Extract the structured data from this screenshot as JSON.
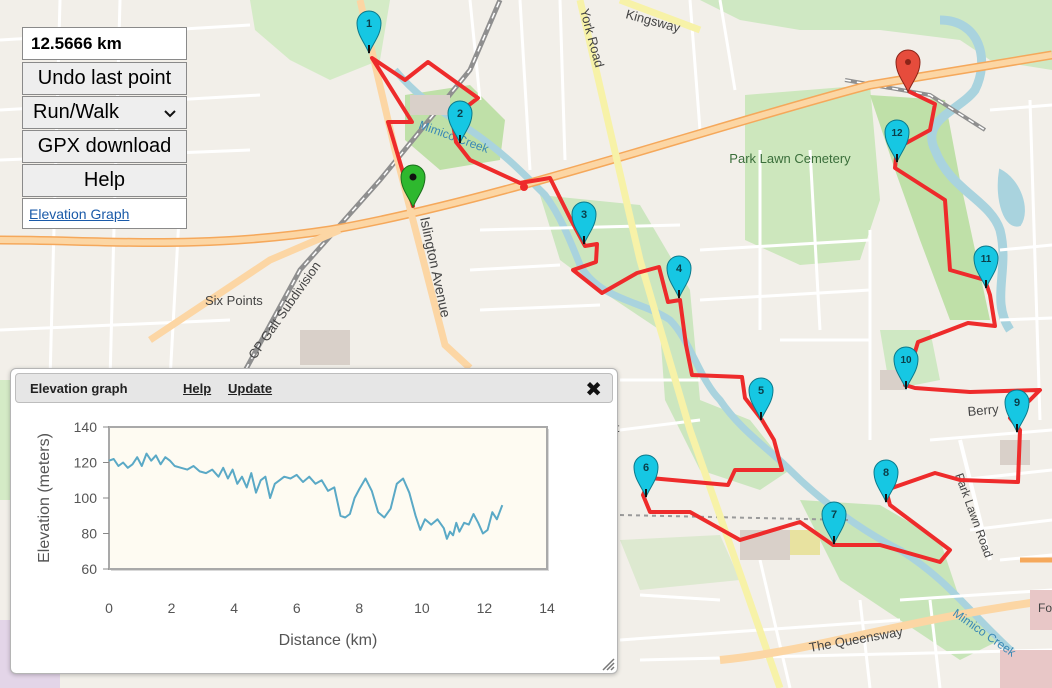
{
  "route": {
    "distance": "12.5666 km",
    "color": "#ee2b2b",
    "start_marker_color": "#2eb82e",
    "end_marker_color": "#e64c3c",
    "waypoint_color": "#16c7e3",
    "waypoints": [
      "1",
      "2",
      "3",
      "4",
      "5",
      "6",
      "7",
      "8",
      "9",
      "10",
      "11",
      "12"
    ]
  },
  "controls": {
    "undo_label": "Undo last point",
    "mode_selected": "Run/Walk",
    "gpx_label": "GPX download",
    "help_label": "Help",
    "elevation_link": "Elevation Graph"
  },
  "map_labels": {
    "road_kingsway": "Kingsway",
    "road_york": "York Road",
    "road_islington": "Islington Avenue",
    "road_berry": "Berry",
    "road_park_lawn": "Park Lawn Road",
    "road_queensway": "The Queensway",
    "subdivision": "CP Galt Subdivision",
    "place_six_points": "Six Points",
    "cemetery": "Park Lawn Cemetery",
    "creek_upper": "Mimico Creek",
    "creek_lower": "Mimico Creek",
    "fo": "Fo",
    "st": "t"
  },
  "elevation_panel": {
    "title": "Elevation graph",
    "help": "Help",
    "update": "Update",
    "close_icon": "close-icon"
  },
  "chart_data": {
    "type": "line",
    "title": "",
    "xlabel": "Distance (km)",
    "ylabel": "Elevation (meters)",
    "xlim": [
      0,
      14
    ],
    "ylim": [
      60,
      140
    ],
    "xticks": [
      0,
      2,
      4,
      6,
      8,
      10,
      12,
      14
    ],
    "yticks": [
      60,
      80,
      100,
      120,
      140
    ],
    "grid": false,
    "line_color": "#5aa9c6",
    "series": [
      {
        "name": "",
        "x": [
          0,
          0.15,
          0.3,
          0.45,
          0.6,
          0.75,
          0.9,
          1.05,
          1.2,
          1.35,
          1.5,
          1.65,
          1.8,
          1.95,
          2.1,
          2.3,
          2.5,
          2.7,
          2.9,
          3.1,
          3.3,
          3.5,
          3.65,
          3.8,
          3.95,
          4.1,
          4.25,
          4.4,
          4.55,
          4.7,
          4.85,
          5.0,
          5.15,
          5.3,
          5.45,
          5.6,
          5.8,
          6.0,
          6.2,
          6.4,
          6.6,
          6.8,
          7.0,
          7.2,
          7.4,
          7.55,
          7.7,
          7.85,
          8.0,
          8.2,
          8.4,
          8.6,
          8.8,
          9.0,
          9.2,
          9.4,
          9.6,
          9.8,
          9.95,
          10.1,
          10.3,
          10.5,
          10.7,
          10.8,
          10.9,
          11.0,
          11.1,
          11.2,
          11.35,
          11.5,
          11.65,
          11.8,
          11.95,
          12.1,
          12.25,
          12.4,
          12.57
        ],
        "y": [
          121,
          122,
          118,
          120,
          117,
          119,
          123,
          118,
          125,
          121,
          124,
          119,
          123,
          121,
          118,
          117,
          116,
          118,
          115,
          114,
          116,
          112,
          117,
          111,
          116,
          108,
          112,
          106,
          114,
          103,
          110,
          112,
          100,
          108,
          110,
          112,
          111,
          113,
          109,
          112,
          108,
          110,
          104,
          106,
          90,
          89,
          91,
          100,
          105,
          111,
          104,
          92,
          89,
          94,
          108,
          111,
          103,
          90,
          82,
          88,
          85,
          88,
          83,
          77,
          81,
          79,
          86,
          81,
          86,
          85,
          91,
          86,
          80,
          82,
          92,
          88,
          96
        ]
      }
    ]
  }
}
